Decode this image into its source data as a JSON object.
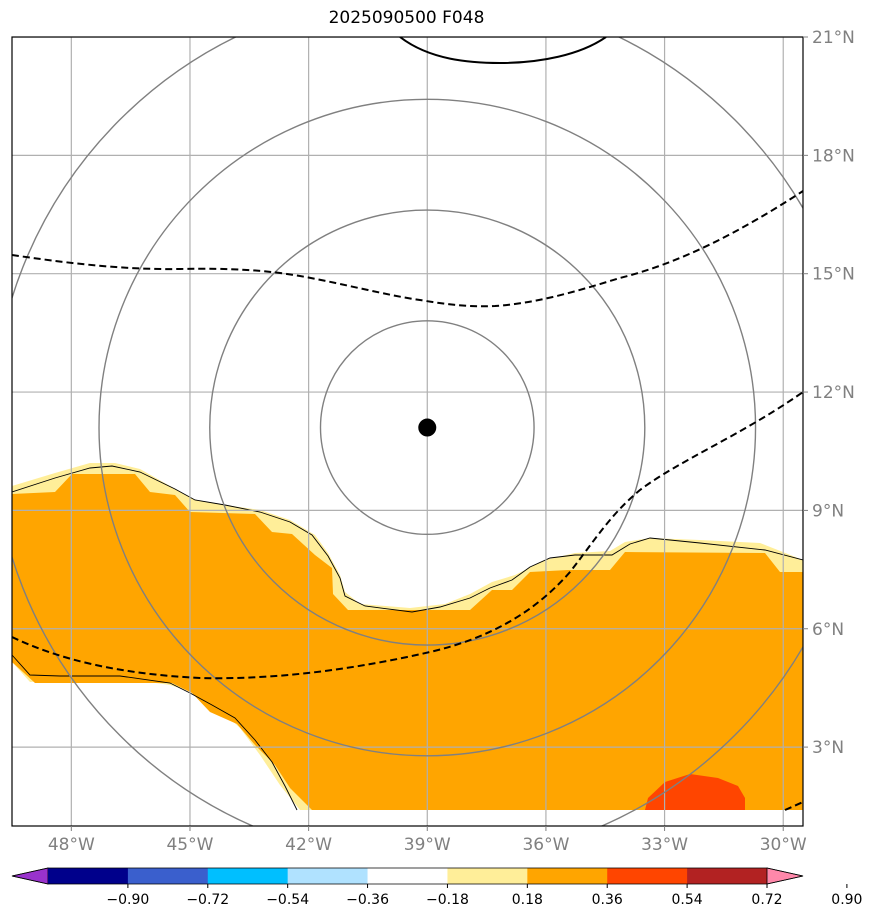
{
  "title": "2025090500 F048",
  "map": {
    "lon_range": [
      -49.5,
      -29.5
    ],
    "lat_range": [
      1.0,
      21.0
    ],
    "lon_ticks": [
      {
        "value": -48,
        "label": "48°W"
      },
      {
        "value": -45,
        "label": "45°W"
      },
      {
        "value": -42,
        "label": "42°W"
      },
      {
        "value": -39,
        "label": "39°W"
      },
      {
        "value": -36,
        "label": "36°W"
      },
      {
        "value": -33,
        "label": "33°W"
      },
      {
        "value": -30,
        "label": "30°W"
      }
    ],
    "lat_ticks": [
      {
        "value": 3,
        "label": "3°N"
      },
      {
        "value": 6,
        "label": "6°N"
      },
      {
        "value": 9,
        "label": "9°N"
      },
      {
        "value": 12,
        "label": "12°N"
      },
      {
        "value": 15,
        "label": "15°N"
      },
      {
        "value": 18,
        "label": "18°N"
      },
      {
        "value": 21,
        "label": "21°N"
      }
    ],
    "grid": true,
    "storm_center": {
      "lon": -39.0,
      "lat": 11.1
    },
    "range_ring_radii_deg": [
      2.7,
      5.5,
      8.3,
      11.0
    ],
    "colors": {
      "shade_018_036": "#ffee99",
      "shade_036_054": "#ffa500",
      "shade_054_072": "#ff4500",
      "grid": "#b0b0b0",
      "rings": "#808080",
      "contour": "#000000"
    }
  },
  "colorbar": {
    "ticks": [
      "−0.90",
      "−0.72",
      "−0.54",
      "−0.36",
      "−0.18",
      "0.18",
      "0.36",
      "0.54",
      "0.72",
      "0.90"
    ],
    "colors": [
      "#9932cc",
      "#00008b",
      "#3a5fcd",
      "#00bfff",
      "#b0e2ff",
      "#ffffff",
      "#ffee99",
      "#ffa500",
      "#ff4500",
      "#b22222",
      "#ff88aa"
    ]
  }
}
